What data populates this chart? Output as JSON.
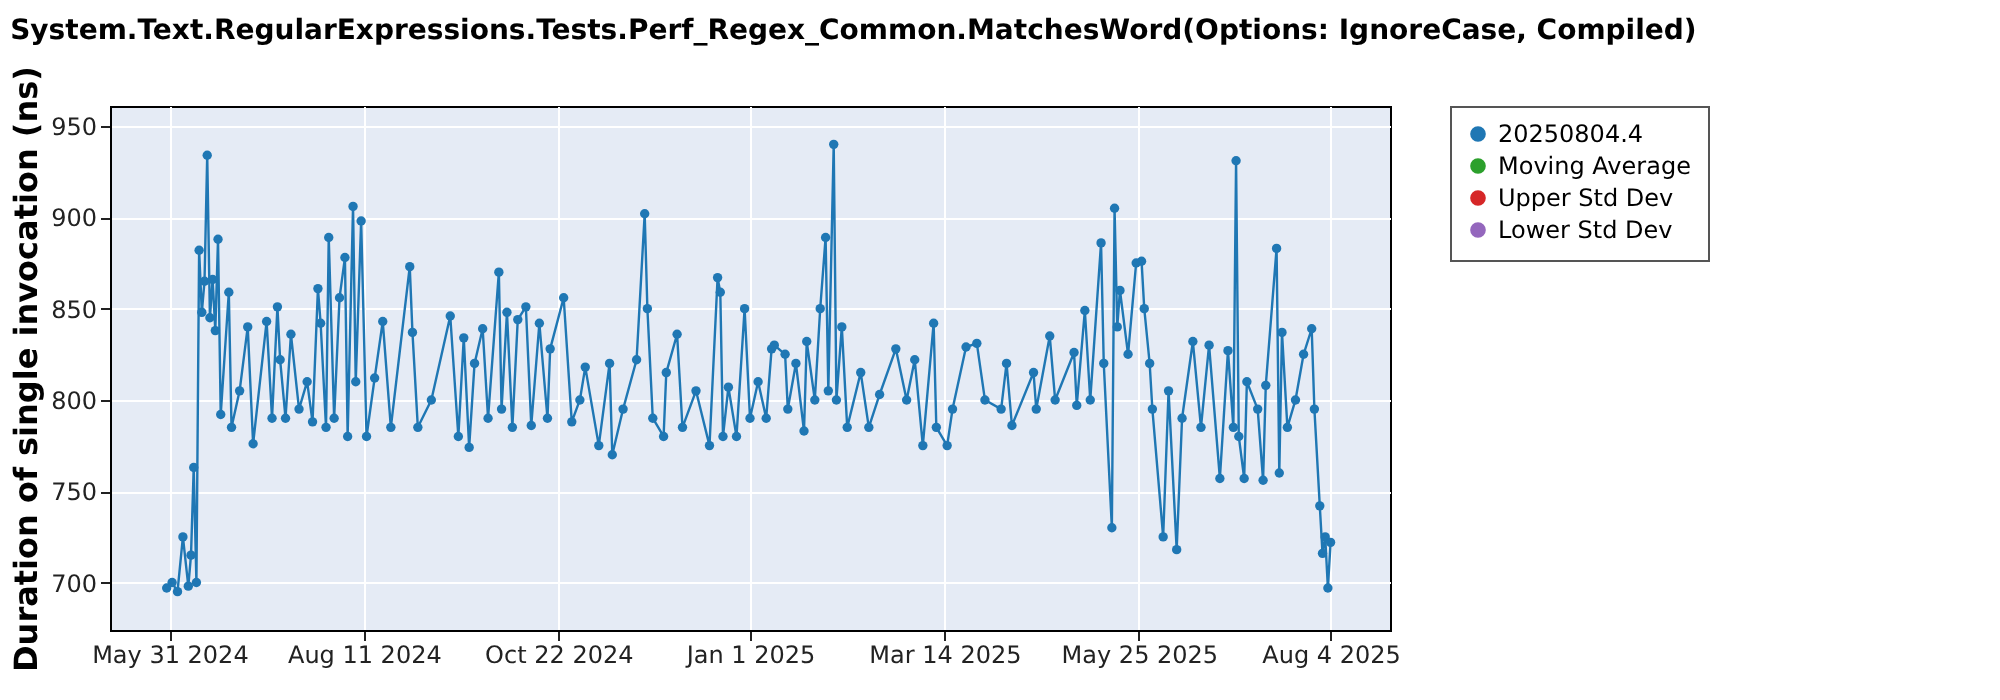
{
  "chart_data": {
    "type": "line",
    "title": "System.Text.RegularExpressions.Tests.Perf_Regex_Common.MatchesWord(Options: IgnoreCase, Compiled)",
    "ylabel": "Duration of single invocation (ns)",
    "x": [
      "2024-05-30",
      "2024-06-01",
      "2024-06-03",
      "2024-06-05",
      "2024-06-07",
      "2024-06-08",
      "2024-06-09",
      "2024-06-10",
      "2024-06-11",
      "2024-06-12",
      "2024-06-13",
      "2024-06-14",
      "2024-06-15",
      "2024-06-16",
      "2024-06-17",
      "2024-06-18",
      "2024-06-19",
      "2024-06-22",
      "2024-06-23",
      "2024-06-26",
      "2024-06-29",
      "2024-07-01",
      "2024-07-06",
      "2024-07-08",
      "2024-07-10",
      "2024-07-11",
      "2024-07-13",
      "2024-07-15",
      "2024-07-18",
      "2024-07-21",
      "2024-07-23",
      "2024-07-25",
      "2024-07-26",
      "2024-07-28",
      "2024-07-29",
      "2024-07-31",
      "2024-08-02",
      "2024-08-04",
      "2024-08-05",
      "2024-08-07",
      "2024-08-08",
      "2024-08-10",
      "2024-08-12",
      "2024-08-15",
      "2024-08-18",
      "2024-08-21",
      "2024-08-28",
      "2024-08-29",
      "2024-08-31",
      "2024-09-05",
      "2024-09-12",
      "2024-09-15",
      "2024-09-17",
      "2024-09-19",
      "2024-09-21",
      "2024-09-24",
      "2024-09-26",
      "2024-09-30",
      "2024-10-01",
      "2024-10-03",
      "2024-10-05",
      "2024-10-07",
      "2024-10-10",
      "2024-10-12",
      "2024-10-15",
      "2024-10-18",
      "2024-10-19",
      "2024-10-24",
      "2024-10-27",
      "2024-10-30",
      "2024-11-01",
      "2024-11-06",
      "2024-11-10",
      "2024-11-11",
      "2024-11-15",
      "2024-11-20",
      "2024-11-23",
      "2024-11-24",
      "2024-11-26",
      "2024-11-30",
      "2024-12-01",
      "2024-12-05",
      "2024-12-07",
      "2024-12-12",
      "2024-12-17",
      "2024-12-20",
      "2024-12-21",
      "2024-12-22",
      "2024-12-24",
      "2024-12-27",
      "2024-12-30",
      "2025-01-01",
      "2025-01-04",
      "2025-01-07",
      "2025-01-09",
      "2025-01-10",
      "2025-01-14",
      "2025-01-15",
      "2025-01-18",
      "2025-01-21",
      "2025-01-22",
      "2025-01-25",
      "2025-01-27",
      "2025-01-29",
      "2025-01-30",
      "2025-02-01",
      "2025-02-02",
      "2025-02-04",
      "2025-02-06",
      "2025-02-11",
      "2025-02-14",
      "2025-02-18",
      "2025-02-24",
      "2025-02-28",
      "2025-03-03",
      "2025-03-06",
      "2025-03-10",
      "2025-03-11",
      "2025-03-15",
      "2025-03-17",
      "2025-03-22",
      "2025-03-26",
      "2025-03-29",
      "2025-04-04",
      "2025-04-06",
      "2025-04-08",
      "2025-04-16",
      "2025-04-17",
      "2025-04-22",
      "2025-04-24",
      "2025-05-01",
      "2025-05-02",
      "2025-05-05",
      "2025-05-07",
      "2025-05-11",
      "2025-05-12",
      "2025-05-15",
      "2025-05-16",
      "2025-05-17",
      "2025-05-18",
      "2025-05-21",
      "2025-05-24",
      "2025-05-26",
      "2025-05-27",
      "2025-05-29",
      "2025-05-30",
      "2025-06-03",
      "2025-06-05",
      "2025-06-08",
      "2025-06-10",
      "2025-06-14",
      "2025-06-17",
      "2025-06-20",
      "2025-06-24",
      "2025-06-27",
      "2025-06-29",
      "2025-06-30",
      "2025-07-01",
      "2025-07-03",
      "2025-07-04",
      "2025-07-08",
      "2025-07-10",
      "2025-07-11",
      "2025-07-15",
      "2025-07-16",
      "2025-07-17",
      "2025-07-19",
      "2025-07-22",
      "2025-07-25",
      "2025-07-28",
      "2025-07-29",
      "2025-07-31",
      "2025-08-01",
      "2025-08-02",
      "2025-08-03",
      "2025-08-04"
    ],
    "series": [
      {
        "name": "20250804.4",
        "color": "#1f77b4",
        "values": [
          697,
          700,
          695,
          725,
          698,
          715,
          763,
          700,
          882,
          848,
          865,
          934,
          845,
          866,
          838,
          888,
          792,
          859,
          785,
          805,
          840,
          776,
          843,
          790,
          851,
          822,
          790,
          836,
          795,
          810,
          788,
          861,
          842,
          785,
          889,
          790,
          856,
          878,
          780,
          906,
          810,
          898,
          780,
          812,
          843,
          785,
          873,
          837,
          785,
          800,
          846,
          780,
          834,
          774,
          820,
          839,
          790,
          870,
          795,
          848,
          785,
          844,
          851,
          786,
          842,
          790,
          828,
          856,
          788,
          800,
          818,
          775,
          820,
          770,
          795,
          822,
          902,
          850,
          790,
          780,
          815,
          836,
          785,
          805,
          775,
          867,
          859,
          780,
          807,
          780,
          850,
          790,
          810,
          790,
          828,
          830,
          825,
          795,
          820,
          783,
          832,
          800,
          850,
          889,
          805,
          940,
          800,
          840,
          785,
          815,
          785,
          803,
          828,
          800,
          822,
          775,
          842,
          785,
          775,
          795,
          829,
          831,
          800,
          795,
          820,
          786,
          815,
          795,
          835,
          800,
          826,
          797,
          849,
          800,
          886,
          820,
          730,
          905,
          840,
          860,
          825,
          875,
          876,
          850,
          820,
          795,
          725,
          805,
          718,
          790,
          832,
          785,
          830,
          757,
          827,
          785,
          931,
          780,
          757,
          810,
          795,
          756,
          808,
          883,
          760,
          837,
          785,
          800,
          825,
          839,
          795,
          742,
          716,
          725,
          697,
          722
        ]
      },
      {
        "name": "Moving Average",
        "color": "#2ca02c",
        "values": [
          null,
          null,
          null,
          null,
          null,
          null,
          null,
          null,
          null,
          null,
          null,
          null,
          null,
          null,
          null,
          null,
          null,
          null,
          null,
          null,
          null,
          null,
          null,
          null,
          null,
          null,
          null,
          null,
          null,
          null,
          null,
          null,
          null,
          null,
          null,
          null,
          null,
          null,
          null,
          null,
          null,
          null,
          null,
          null,
          null,
          null,
          null,
          null,
          null,
          null,
          null,
          null,
          null,
          null,
          null,
          null,
          null,
          null,
          null,
          null,
          null,
          null,
          null,
          null,
          null,
          null,
          null,
          null,
          null,
          null,
          null,
          null,
          null,
          null,
          null,
          null,
          null,
          null,
          null,
          null,
          null,
          null,
          null,
          null,
          null,
          null,
          null,
          null,
          null,
          null,
          null,
          null,
          null,
          null,
          null,
          null,
          null,
          null,
          null,
          null,
          null,
          null,
          null,
          null,
          null,
          null,
          null,
          null,
          null,
          null,
          null,
          null,
          null,
          null,
          null,
          null,
          null,
          null,
          null,
          null,
          null,
          null,
          null,
          null,
          null,
          null,
          null,
          null,
          null,
          null,
          null,
          null,
          null,
          null,
          null,
          null,
          null,
          null,
          null,
          null,
          null,
          null,
          null,
          null,
          null,
          null,
          null,
          null,
          null,
          null,
          null,
          null,
          null,
          null,
          null,
          null,
          null,
          null,
          null,
          null,
          null,
          null,
          null,
          null,
          null,
          null,
          null,
          null,
          null,
          null,
          null,
          null,
          null,
          null,
          null,
          null
        ]
      },
      {
        "name": "Upper Std Dev",
        "color": "#d62728",
        "values": [
          null,
          null,
          null,
          null,
          null,
          null,
          null,
          null,
          null,
          null,
          null,
          null,
          null,
          null,
          null,
          null,
          null,
          null,
          null,
          null,
          null,
          null,
          null,
          null,
          null,
          null,
          null,
          null,
          null,
          null,
          null,
          null,
          null,
          null,
          null,
          null,
          null,
          null,
          null,
          null,
          null,
          null,
          null,
          null,
          null,
          null,
          null,
          null,
          null,
          null,
          null,
          null,
          null,
          null,
          null,
          null,
          null,
          null,
          null,
          null,
          null,
          null,
          null,
          null,
          null,
          null,
          null,
          null,
          null,
          null,
          null,
          null,
          null,
          null,
          null,
          null,
          null,
          null,
          null,
          null,
          null,
          null,
          null,
          null,
          null,
          null,
          null,
          null,
          null,
          null,
          null,
          null,
          null,
          null,
          null,
          null,
          null,
          null,
          null,
          null,
          null,
          null,
          null,
          null,
          null,
          null,
          null,
          null,
          null,
          null,
          null,
          null,
          null,
          null,
          null,
          null,
          null,
          null,
          null,
          null,
          null,
          null,
          null,
          null,
          null,
          null,
          null,
          null,
          null,
          null,
          null,
          null,
          null,
          null,
          null,
          null,
          null,
          null,
          null,
          null,
          null,
          null,
          null,
          null,
          null,
          null,
          null,
          null,
          null,
          null,
          null,
          null,
          null,
          null,
          null,
          null,
          null,
          null,
          null,
          null,
          null,
          null,
          null,
          null,
          null,
          null,
          null,
          null,
          null,
          null,
          null,
          null,
          null,
          null,
          null,
          null
        ]
      },
      {
        "name": "Lower Std Dev",
        "color": "#9467bd",
        "values": [
          null,
          null,
          null,
          null,
          null,
          null,
          null,
          null,
          null,
          null,
          null,
          null,
          null,
          null,
          null,
          null,
          null,
          null,
          null,
          null,
          null,
          null,
          null,
          null,
          null,
          null,
          null,
          null,
          null,
          null,
          null,
          null,
          null,
          null,
          null,
          null,
          null,
          null,
          null,
          null,
          null,
          null,
          null,
          null,
          null,
          null,
          null,
          null,
          null,
          null,
          null,
          null,
          null,
          null,
          null,
          null,
          null,
          null,
          null,
          null,
          null,
          null,
          null,
          null,
          null,
          null,
          null,
          null,
          null,
          null,
          null,
          null,
          null,
          null,
          null,
          null,
          null,
          null,
          null,
          null,
          null,
          null,
          null,
          null,
          null,
          null,
          null,
          null,
          null,
          null,
          null,
          null,
          null,
          null,
          null,
          null,
          null,
          null,
          null,
          null,
          null,
          null,
          null,
          null,
          null,
          null,
          null,
          null,
          null,
          null,
          null,
          null,
          null,
          null,
          null,
          null,
          null,
          null,
          null,
          null,
          null,
          null,
          null,
          null,
          null,
          null,
          null,
          null,
          null,
          null,
          null,
          null,
          null,
          null,
          null,
          null,
          null,
          null,
          null,
          null,
          null,
          null,
          null,
          null,
          null,
          null,
          null,
          null,
          null,
          null,
          null,
          null,
          null,
          null,
          null,
          null,
          null,
          null,
          null,
          null,
          null,
          null,
          null,
          null,
          null,
          null,
          null,
          null,
          null,
          null,
          null,
          null,
          null,
          null,
          null,
          null
        ]
      }
    ],
    "xlim": [
      "2024-05-09",
      "2025-08-26"
    ],
    "xticks": [
      {
        "value": "2024-05-31",
        "label": "May 31 2024"
      },
      {
        "value": "2024-08-11",
        "label": "Aug 11 2024"
      },
      {
        "value": "2024-10-22",
        "label": "Oct 22 2024"
      },
      {
        "value": "2025-01-01",
        "label": "Jan 1 2025"
      },
      {
        "value": "2025-03-14",
        "label": "Mar 14 2025"
      },
      {
        "value": "2025-05-25",
        "label": "May 25 2025"
      },
      {
        "value": "2025-08-04",
        "label": "Aug 4 2025"
      }
    ],
    "ylim": [
      674,
      961
    ],
    "yticks": [
      700,
      750,
      800,
      850,
      900,
      950
    ],
    "grid": true,
    "legend": "right",
    "marker": "circle",
    "line_style": "solid"
  }
}
